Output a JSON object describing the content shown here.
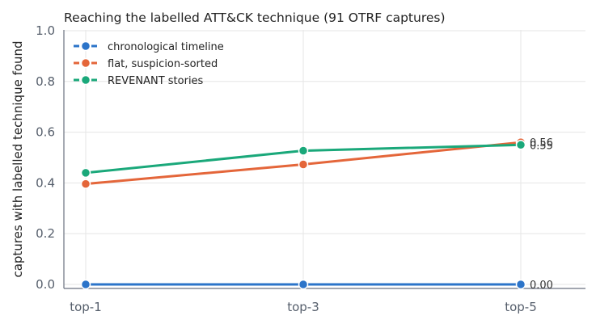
{
  "chart_data": {
    "type": "line",
    "title": "Reaching the labelled ATT&CK technique (91 OTRF captures)",
    "xlabel": "",
    "ylabel": "captures with labelled technique found",
    "categories": [
      "top-1",
      "top-3",
      "top-5"
    ],
    "ylim": [
      0,
      1
    ],
    "yticks": [
      "0.0",
      "0.2",
      "0.4",
      "0.6",
      "0.8",
      "1.0"
    ],
    "grid": true,
    "legend_position": "top-left",
    "series": [
      {
        "name": "chronological timeline",
        "values": [
          0.0,
          0.0,
          0.0
        ],
        "color": "#2c74c9",
        "end_label": "0.00"
      },
      {
        "name": "flat, suspicion-sorted",
        "values": [
          0.396,
          0.473,
          0.56
        ],
        "color": "#e4663a",
        "end_label": "0.56"
      },
      {
        "name": "REVENANT stories",
        "values": [
          0.44,
          0.527,
          0.55
        ],
        "color": "#1aa87a",
        "end_label": "0.55"
      }
    ]
  }
}
